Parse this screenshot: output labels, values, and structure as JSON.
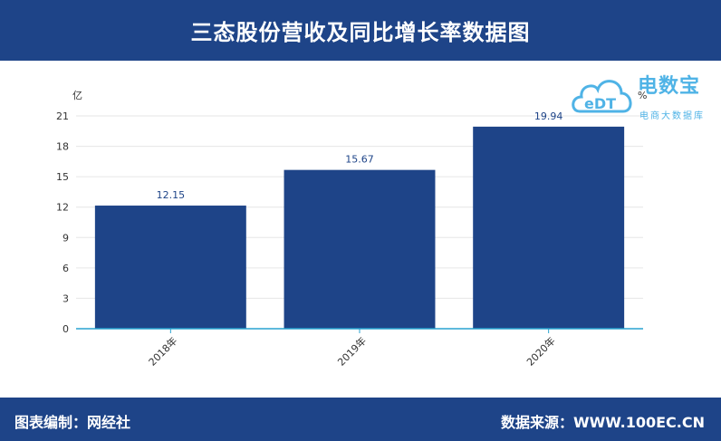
{
  "header": {
    "title": "三态股份营收及同比增长率数据图"
  },
  "footer": {
    "left": "图表编制：网经社",
    "right": "数据来源：WWW.100EC.CN"
  },
  "logo": {
    "brand": "电数宝",
    "tag": "电商大数据库",
    "mark": "eDT"
  },
  "colors": {
    "bar": "#1e4488",
    "header": "#1e4488",
    "axis": "#29a3d0",
    "logo": "#4fb3e6"
  },
  "chart_data": {
    "type": "bar",
    "categories": [
      "2018年",
      "2019年",
      "2020年"
    ],
    "values": [
      12.15,
      15.67,
      19.94
    ],
    "data_labels": [
      "12.15",
      "15.67",
      "19.94"
    ],
    "ylabel": "亿",
    "y2label": "%",
    "ylim": [
      0,
      21
    ],
    "yticks": [
      "0",
      "3",
      "6",
      "9",
      "12",
      "15",
      "18",
      "21"
    ],
    "grid": true
  }
}
